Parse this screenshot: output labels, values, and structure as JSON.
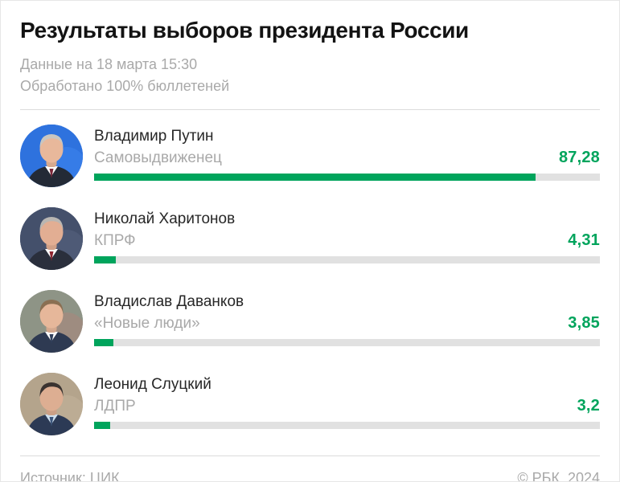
{
  "header": {
    "title": "Результаты выборов президента России",
    "subtitle_line1": "Данные на 18 марта 15:30",
    "subtitle_line2": "Обработано 100% бюллетеней"
  },
  "footer": {
    "source": "Источник: ЦИК",
    "copyright": "© РБК, 2024"
  },
  "colors": {
    "accent_green": "#00a45c",
    "bar_track": "#e1e1e1",
    "muted_text": "#a9a9a9",
    "title_text": "#131313",
    "divider": "#dcdcdc"
  },
  "candidates": [
    {
      "name": "Владимир Путин",
      "party": "Самовыдвиженец",
      "value": 87.28,
      "value_label": "87,28",
      "photo_name": "putin-photo",
      "avatar_colors": {
        "bg": "#2e72de",
        "bg2": "#3e85ee",
        "suit": "#232a36",
        "shirt": "#ffffff",
        "tie": "#7a2638",
        "hair": "#c9c6c0",
        "skin": "#e8b89b"
      }
    },
    {
      "name": "Николай Харитонов",
      "party": "КПРФ",
      "value": 4.31,
      "value_label": "4,31",
      "photo_name": "kharitonov-photo",
      "avatar_colors": {
        "bg": "#44506b",
        "bg2": "#57637f",
        "suit": "#2a2f3c",
        "shirt": "#ffffff",
        "tie": "#8e2430",
        "hair": "#b9b6b2",
        "skin": "#e2ae93"
      }
    },
    {
      "name": "Владислав Даванков",
      "party": "«Новые люди»",
      "value": 3.85,
      "value_label": "3,85",
      "photo_name": "davankov-photo",
      "avatar_colors": {
        "bg": "#8e9486",
        "bg2": "#ab857b",
        "suit": "#2e3a52",
        "shirt": "#ffffff",
        "tie": "#31405c",
        "hair": "#8a6f52",
        "skin": "#e6b79a"
      }
    },
    {
      "name": "Леонид Слуцкий",
      "party": "ЛДПР",
      "value": 3.2,
      "value_label": "3,2",
      "photo_name": "slutsky-photo",
      "avatar_colors": {
        "bg": "#b4a48c",
        "bg2": "#c2b39b",
        "suit": "#2c3a55",
        "shirt": "#cfe0ee",
        "tie": "#3c567c",
        "hair": "#3a3330",
        "skin": "#ddae92"
      }
    }
  ],
  "chart_data": {
    "type": "bar",
    "orientation": "horizontal",
    "title": "Результаты выборов президента России",
    "subtitle": [
      "Данные на 18 марта 15:30",
      "Обработано 100% бюллетеней"
    ],
    "categories": [
      "Владимир Путин",
      "Николай Харитонов",
      "Владислав Даванков",
      "Леонид Слуцкий"
    ],
    "category_sublabels": [
      "Самовыдвиженец",
      "КПРФ",
      "«Новые люди»",
      "ЛДПР"
    ],
    "values": [
      87.28,
      4.31,
      3.85,
      3.2
    ],
    "value_labels": [
      "87,28",
      "4,31",
      "3,85",
      "3,2"
    ],
    "xlim": [
      0,
      100
    ],
    "unit": "%",
    "grid": false,
    "legend": false,
    "source": "Источник: ЦИК",
    "copyright": "© РБК, 2024"
  }
}
